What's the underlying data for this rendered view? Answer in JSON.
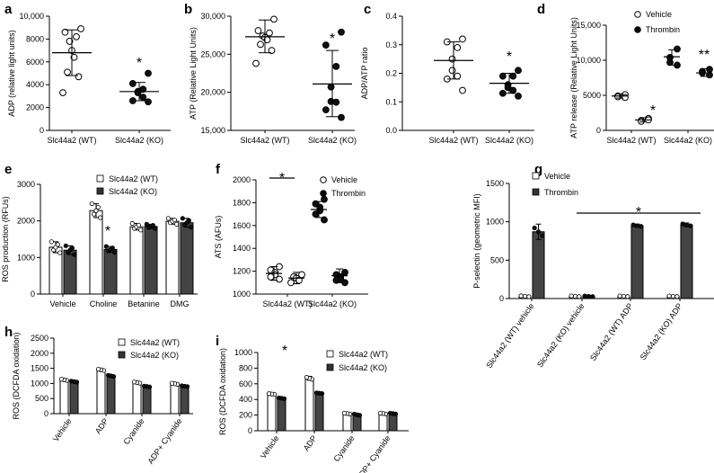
{
  "chart_data": [
    {
      "panel": "a",
      "type": "scatter",
      "ylabel": "ADP (relative light units)",
      "ylim": [
        0,
        10000
      ],
      "yticks": [
        0,
        2000,
        4000,
        6000,
        8000,
        10000
      ],
      "yticklabels": [
        "0",
        "2000",
        "4000",
        "6000",
        "8000",
        "10,000"
      ],
      "categories": [
        "Slc44a2 (WT)",
        "Slc44a2 (KO)"
      ],
      "series": [
        {
          "filled": false,
          "points": [
            8900,
            8600,
            8200,
            7800,
            7000,
            6400,
            5100,
            4700,
            3300
          ],
          "mean": 6800,
          "err": [
            4800,
            8800
          ]
        },
        {
          "filled": true,
          "points": [
            5000,
            4100,
            3600,
            3400,
            3300,
            2900,
            2600,
            2500
          ],
          "mean": 3400,
          "err": [
            2600,
            4200
          ]
        }
      ],
      "annotations": [
        "*"
      ]
    },
    {
      "panel": "b",
      "type": "scatter",
      "ylabel": "ATP (Relative Light Units)",
      "ylim": [
        15000,
        30000
      ],
      "yticks": [
        15000,
        20000,
        25000,
        30000
      ],
      "yticklabels": [
        "15,000",
        "20,000",
        "25,000",
        "30,000"
      ],
      "categories": [
        "Slc44a2 (WT)",
        "Slc44a2 (KO)"
      ],
      "series": [
        {
          "filled": false,
          "points": [
            29600,
            28100,
            27800,
            27400,
            27200,
            26900,
            26300,
            25500,
            23800
          ],
          "mean": 27300,
          "err": [
            25200,
            29500
          ]
        },
        {
          "filled": true,
          "points": [
            27900,
            26200,
            23400,
            20700,
            18800,
            18700,
            17700,
            16700
          ],
          "mean": 21100,
          "err": [
            16800,
            25500
          ]
        }
      ],
      "annotations": [
        "*"
      ]
    },
    {
      "panel": "c",
      "type": "scatter",
      "ylabel": "ADP/ATP ratio",
      "ylim": [
        0,
        0.4
      ],
      "yticks": [
        0,
        0.1,
        0.2,
        0.3,
        0.4
      ],
      "yticklabels": [
        "0.0",
        "0.1",
        "0.2",
        "0.3",
        "0.4"
      ],
      "categories": [
        "Slc44a2 (WT)",
        "Slc44a2 (KO)"
      ],
      "series": [
        {
          "filled": false,
          "points": [
            0.32,
            0.31,
            0.29,
            0.25,
            0.21,
            0.19,
            0.18,
            0.14
          ],
          "mean": 0.245,
          "err": [
            0.18,
            0.31
          ]
        },
        {
          "filled": true,
          "points": [
            0.21,
            0.19,
            0.19,
            0.16,
            0.15,
            0.14,
            0.13,
            0.12
          ],
          "mean": 0.165,
          "err": [
            0.13,
            0.2
          ]
        }
      ],
      "annotations": [
        "*"
      ]
    },
    {
      "panel": "d",
      "type": "scatter",
      "ylabel": "ATP release (Relative Light Units)",
      "ylim": [
        0,
        15000
      ],
      "yticks": [
        0,
        5000,
        10000,
        15000
      ],
      "yticklabels": [
        "0",
        "5000",
        "10,000",
        "15,000"
      ],
      "categories": [
        "Slc44a2 (WT)",
        "Slc44a2 (KO)"
      ],
      "legend": [
        "Vehicle",
        "Thrombin"
      ],
      "series": [
        {
          "name": "Vehicle",
          "filled": false,
          "groups": [
            [
              5100,
              4900,
              4800,
              4700
            ],
            [
              1700,
              1400,
              1300,
              1500
            ]
          ],
          "mean": [
            4900,
            1500
          ],
          "err": [
            [
              4600,
              5200
            ],
            [
              1200,
              1800
            ]
          ]
        },
        {
          "name": "Thrombin",
          "filled": true,
          "groups": [
            [
              11600,
              10400,
              9700,
              9300
            ],
            [
              8700,
              8400,
              8200,
              7900
            ]
          ],
          "mean": [
            10500,
            8200
          ],
          "err": [
            [
              9300,
              11500
            ],
            [
              7700,
              8800
            ]
          ]
        }
      ],
      "annotations": [
        "*",
        "**"
      ]
    },
    {
      "panel": "e",
      "type": "bar",
      "ylabel": "ROS production (RFUs)",
      "ylim": [
        0,
        3000
      ],
      "yticks": [
        0,
        1000,
        2000,
        3000
      ],
      "yticklabels": [
        "0",
        "1000",
        "2000",
        "3000"
      ],
      "categories": [
        "Vehicle",
        "Choline",
        "Betanine",
        "DMG"
      ],
      "legend": [
        "Slc44a2 (WT)",
        "Slc44a2 (KO)"
      ],
      "series": [
        {
          "name": "Slc44a2 (WT)",
          "values": [
            1280,
            2280,
            1840,
            1990
          ],
          "err": [
            150,
            190,
            90,
            80
          ]
        },
        {
          "name": "Slc44a2 (KO)",
          "values": [
            1200,
            1220,
            1850,
            1950
          ],
          "err": [
            120,
            80,
            60,
            120
          ]
        }
      ],
      "annotations": [
        "*"
      ]
    },
    {
      "panel": "f",
      "type": "scatter",
      "ylabel": "ATS (AFUs)",
      "ylim": [
        1000,
        2000
      ],
      "yticks": [
        1000,
        1200,
        1400,
        1600,
        1800,
        2000
      ],
      "yticklabels": [
        "1000",
        "1200",
        "1400",
        "1600",
        "1800",
        "2000"
      ],
      "categories": [
        "Slc44a2 (WT)",
        "Slc44a2 (KO)"
      ],
      "legend": [
        "Vehicle",
        "Thrombin"
      ],
      "series": [
        {
          "name": "Vehicle",
          "filled": false,
          "groups": [
            [
              1240,
              1210,
              1190,
              1170,
              1150,
              1130
            ],
            [
              1170,
              1150,
              1140,
              1120,
              1100
            ]
          ],
          "mean": [
            1180,
            1140
          ],
          "err": [
            [
              1120,
              1240
            ],
            [
              1090,
              1190
            ]
          ]
        },
        {
          "name": "Thrombin",
          "filled": true,
          "groups": [
            [
              1830,
              1790,
              1760,
              1730,
              1700,
              1650
            ],
            [
              1190,
              1170,
              1150,
              1130,
              1120,
              1100
            ]
          ],
          "mean": [
            1740,
            1160
          ],
          "err": [
            [
              1670,
              1810
            ],
            [
              1100,
              1220
            ]
          ]
        }
      ],
      "annotations": [
        "*"
      ]
    },
    {
      "panel": "g",
      "type": "bar",
      "ylabel": "P-selectin (geometric MFI)",
      "ylim": [
        0,
        1500
      ],
      "yticks": [
        0,
        500,
        1000,
        1500
      ],
      "yticklabels": [
        "0",
        "500",
        "1000",
        "1500"
      ],
      "categories": [
        "Slc44a2 (WT) vehicle",
        "Slc44a2 (KO) vehicle",
        "Slc44a2 (WT) ADP",
        "Slc44a2 (KO) ADP"
      ],
      "legend": [
        "Vehicle",
        "Thrombin"
      ],
      "series": [
        {
          "name": "Vehicle",
          "values": [
            30,
            30,
            30,
            30
          ],
          "err": [
            10,
            8,
            8,
            8
          ]
        },
        {
          "name": "Thrombin",
          "values": [
            870,
            30,
            950,
            960
          ],
          "err": [
            100,
            8,
            20,
            25
          ]
        }
      ],
      "annotations": [
        "*"
      ]
    },
    {
      "panel": "h",
      "type": "bar",
      "ylabel": "ROS (DCFDA oxidation)",
      "ylim": [
        0,
        2500
      ],
      "yticks": [
        0,
        500,
        1000,
        1500,
        2000,
        2500
      ],
      "yticklabels": [
        "0",
        "500",
        "1000",
        "1500",
        "2000",
        "2500"
      ],
      "categories": [
        "Vehicle",
        "ADP",
        "Cyanide",
        "ADP+ Cyanide"
      ],
      "legend": [
        "Slc44a2 (WT)",
        "Slc44a2 (KO)"
      ],
      "series": [
        {
          "name": "Slc44a2 (WT)",
          "values": [
            1120,
            1450,
            1030,
            990
          ],
          "err": [
            40,
            40,
            35,
            30
          ]
        },
        {
          "name": "Slc44a2 (KO)",
          "values": [
            1060,
            1250,
            900,
            910
          ],
          "err": [
            30,
            40,
            25,
            25
          ]
        }
      ]
    },
    {
      "panel": "i",
      "type": "bar",
      "ylabel": "ROS (DCFDA oxidation)",
      "ylim": [
        0,
        1000
      ],
      "yticks": [
        0,
        200,
        400,
        600,
        800,
        1000
      ],
      "yticklabels": [
        "0",
        "200",
        "400",
        "600",
        "800",
        "1000"
      ],
      "categories": [
        "Vehicle",
        "ADP",
        "Cyanide",
        "ADP+ Cyanide"
      ],
      "legend": [
        "Slc44a2 (WT)",
        "Slc44a2 (KO)"
      ],
      "series": [
        {
          "name": "Slc44a2 (WT)",
          "values": [
            470,
            670,
            220,
            220
          ],
          "err": [
            8,
            25,
            10,
            10
          ]
        },
        {
          "name": "Slc44a2 (KO)",
          "values": [
            415,
            480,
            205,
            220
          ],
          "err": [
            10,
            8,
            15,
            10
          ]
        }
      ],
      "annotations": [
        "*"
      ]
    }
  ]
}
